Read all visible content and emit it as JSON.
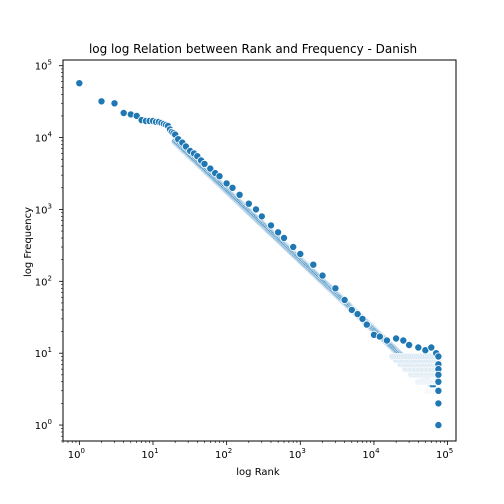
{
  "chart_data": {
    "type": "scatter",
    "title": "log log Relation between Rank and Frequency - Danish",
    "xlabel": "log Rank",
    "ylabel": "log Frequency",
    "xscale": "log",
    "yscale": "log",
    "xlim": [
      0.6,
      130000
    ],
    "ylim": [
      0.6,
      120000
    ],
    "xticks": [
      {
        "value": 1,
        "base": "10",
        "exp": "0"
      },
      {
        "value": 10,
        "base": "10",
        "exp": "1"
      },
      {
        "value": 100,
        "base": "10",
        "exp": "2"
      },
      {
        "value": 1000,
        "base": "10",
        "exp": "3"
      },
      {
        "value": 10000,
        "base": "10",
        "exp": "4"
      },
      {
        "value": 100000,
        "base": "10",
        "exp": "5"
      }
    ],
    "yticks": [
      {
        "value": 1,
        "base": "10",
        "exp": "0"
      },
      {
        "value": 10,
        "base": "10",
        "exp": "1"
      },
      {
        "value": 100,
        "base": "10",
        "exp": "2"
      },
      {
        "value": 1000,
        "base": "10",
        "exp": "3"
      },
      {
        "value": 10000,
        "base": "10",
        "exp": "4"
      },
      {
        "value": 100000,
        "base": "10",
        "exp": "5"
      }
    ],
    "grid": false,
    "legend": "none",
    "marker_color": "#1f77b4",
    "series": [
      {
        "x": [
          1,
          2,
          3,
          4,
          5,
          6,
          7,
          8,
          9,
          10,
          11,
          12,
          13,
          14,
          15,
          16,
          17,
          18,
          19,
          20,
          22,
          25,
          28,
          32,
          36,
          40,
          45,
          50,
          60,
          70,
          80,
          100,
          120,
          150,
          200,
          250,
          300,
          400,
          500,
          600,
          800,
          1000,
          1500,
          2000,
          3000,
          4000,
          5000,
          6000,
          7000,
          8000,
          10000,
          12000,
          15000,
          20000,
          25000,
          30000,
          40000,
          50000,
          60000,
          70000,
          75000,
          75000,
          75000,
          75000,
          75000,
          75000,
          75000,
          75000
        ],
        "y": [
          57000,
          32000,
          30000,
          22000,
          21000,
          20000,
          17500,
          17000,
          17000,
          17000,
          16500,
          16500,
          16000,
          15500,
          15000,
          14500,
          13000,
          12000,
          11500,
          11000,
          9500,
          8500,
          7500,
          6500,
          6000,
          5500,
          4800,
          4300,
          3700,
          3200,
          2900,
          2300,
          2000,
          1600,
          1200,
          1000,
          800,
          600,
          480,
          400,
          300,
          240,
          170,
          120,
          80,
          55,
          40,
          35,
          30,
          25,
          18,
          17,
          15,
          16,
          15,
          13,
          12,
          11,
          12,
          10,
          9,
          7,
          6,
          5,
          4,
          3,
          2,
          1
        ]
      }
    ]
  }
}
